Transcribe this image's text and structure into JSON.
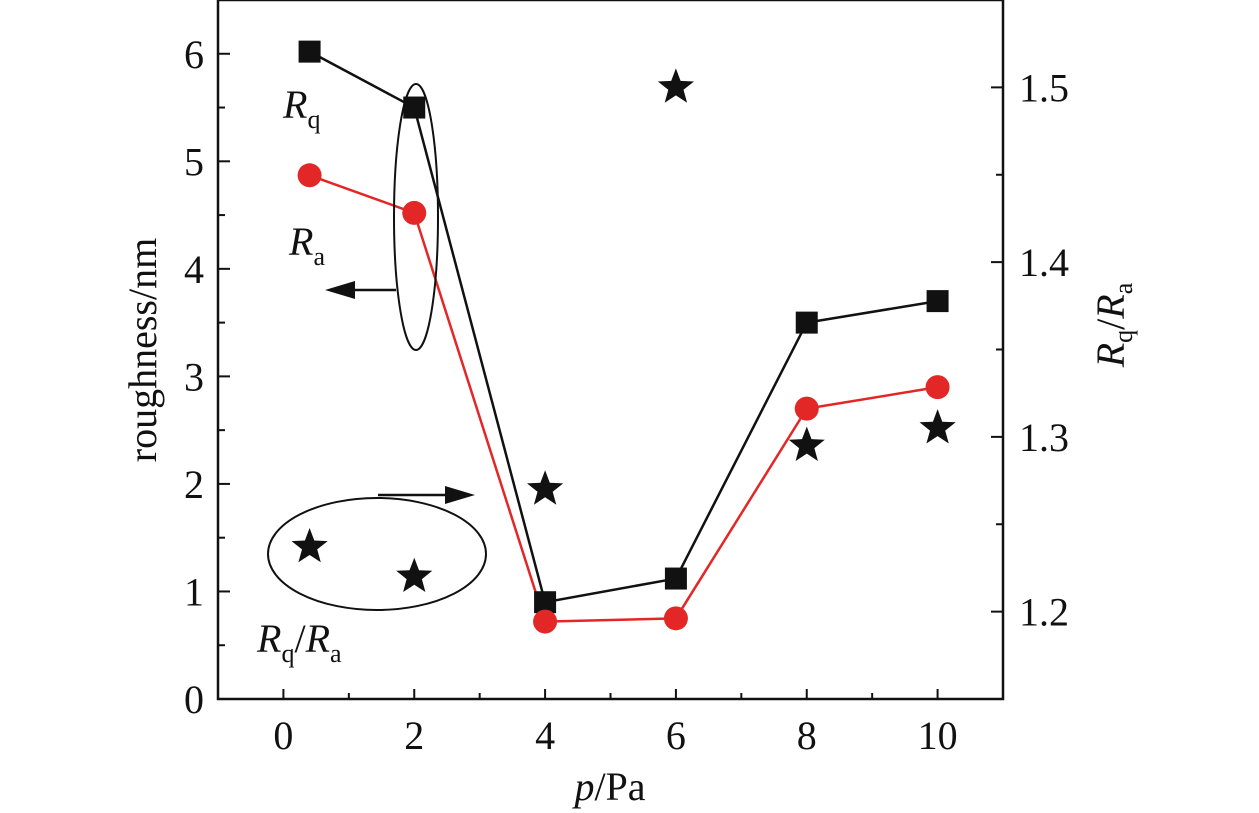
{
  "chart_data": {
    "type": "line",
    "xlabel": {
      "main": "p",
      "rest": "/Pa"
    },
    "ylabel_left": "roughness/nm",
    "ylabel_right": {
      "a": "R",
      "a_sub": "q",
      "slash": "/",
      "b": "R",
      "b_sub": "a"
    },
    "x_ticks": [
      "0",
      "2",
      "4",
      "6",
      "8",
      "10"
    ],
    "y_left_ticks": [
      "0",
      "1",
      "2",
      "3",
      "4",
      "5",
      "6"
    ],
    "y_right_ticks": [
      "1.2",
      "1.3",
      "1.4",
      "1.5"
    ],
    "xlim": [
      -1,
      11
    ],
    "ylim_left": [
      0,
      6.5
    ],
    "ylim_right": [
      1.15,
      1.55
    ],
    "grid": false,
    "series": [
      {
        "name": "Rq",
        "axis": "left",
        "marker": "square",
        "color": "#111111",
        "x": [
          0.4,
          2,
          4,
          6,
          8,
          10
        ],
        "values": [
          6.02,
          5.5,
          0.9,
          1.12,
          3.5,
          3.7
        ]
      },
      {
        "name": "Ra",
        "axis": "left",
        "marker": "circle",
        "color": "#e32626",
        "x": [
          0.4,
          2,
          4,
          6,
          8,
          10
        ],
        "values": [
          4.87,
          4.52,
          0.72,
          0.75,
          2.7,
          2.9
        ]
      },
      {
        "name": "Rq/Ra",
        "axis": "right",
        "marker": "star",
        "color": "#111111",
        "x": [
          0.4,
          2,
          4,
          6,
          8,
          10
        ],
        "values": [
          1.237,
          1.22,
          1.27,
          1.5,
          1.295,
          1.305
        ]
      }
    ],
    "annotations": {
      "rq": {
        "main": "R",
        "sub": "q"
      },
      "ra": {
        "main": "R",
        "sub": "a"
      },
      "ratio": {
        "a": "R",
        "a_sub": "q",
        "slash": "/",
        "b": "R",
        "b_sub": "a"
      }
    }
  }
}
